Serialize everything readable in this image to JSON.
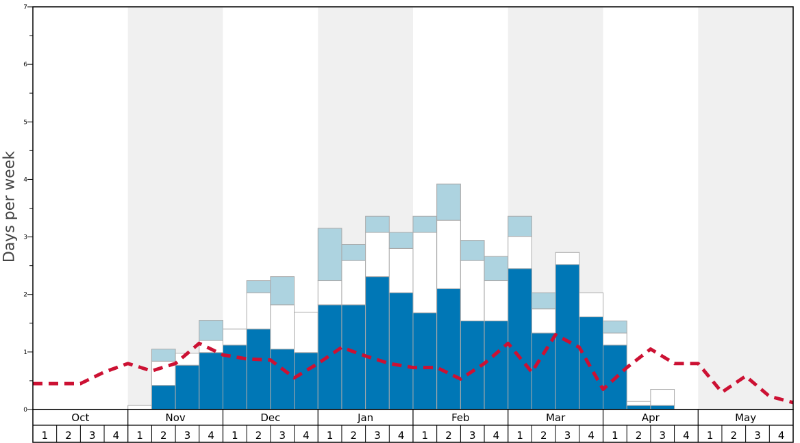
{
  "chart_data": {
    "type": "bar",
    "stacked": true,
    "title": "",
    "xlabel": "",
    "ylabel": "Days per week",
    "ylim": [
      0,
      7
    ],
    "yticks": [
      "0",
      "1",
      "2",
      "3",
      "4",
      "5",
      "6",
      "7"
    ],
    "months": [
      "Oct",
      "Nov",
      "Dec",
      "Jan",
      "Feb",
      "Mar",
      "Apr",
      "May"
    ],
    "weeks": [
      "1",
      "2",
      "3",
      "4"
    ],
    "colors": {
      "dark": "#0077b6",
      "white": "#ffffff",
      "light": "#add3e0",
      "line": "#cc1133",
      "shade": "#f0f0f0"
    },
    "series": [
      {
        "values": [
          0,
          0,
          0,
          0,
          0,
          0.42,
          0.77,
          0.99,
          1.12,
          1.4,
          1.05,
          0.99,
          1.82,
          1.82,
          2.31,
          2.03,
          1.68,
          2.1,
          1.54,
          1.54,
          2.45,
          1.33,
          2.52,
          1.61,
          1.12,
          0.07,
          0.07,
          0,
          0,
          0,
          0,
          0
        ]
      },
      {
        "values": [
          0,
          0,
          0,
          0,
          0.07,
          0.42,
          0.21,
          0.21,
          0.28,
          0.63,
          0.77,
          0.7,
          0.42,
          0.77,
          0.77,
          0.77,
          1.4,
          1.19,
          1.05,
          0.7,
          0.56,
          0.42,
          0.21,
          0.42,
          0.21,
          0.07,
          0.28,
          0,
          0,
          0,
          0,
          0
        ]
      },
      {
        "values": [
          0,
          0,
          0,
          0,
          0,
          0.21,
          0,
          0.35,
          0,
          0.21,
          0.49,
          0,
          0.91,
          0.28,
          0.28,
          0.28,
          0.28,
          0.63,
          0.35,
          0.42,
          0.35,
          0.28,
          0,
          0,
          0.21,
          0,
          0,
          0,
          0,
          0,
          0,
          0
        ]
      }
    ],
    "line": [
      0.45,
      0.45,
      0.45,
      0.65,
      0.8,
      0.67,
      0.8,
      1.15,
      0.95,
      0.88,
      0.86,
      0.55,
      0.8,
      1.08,
      0.93,
      0.8,
      0.73,
      0.73,
      0.53,
      0.8,
      1.15,
      0.65,
      1.3,
      1.08,
      0.35,
      0.73,
      1.05,
      0.8,
      0.8,
      0.3,
      0.58,
      0.23,
      0.12
    ]
  }
}
